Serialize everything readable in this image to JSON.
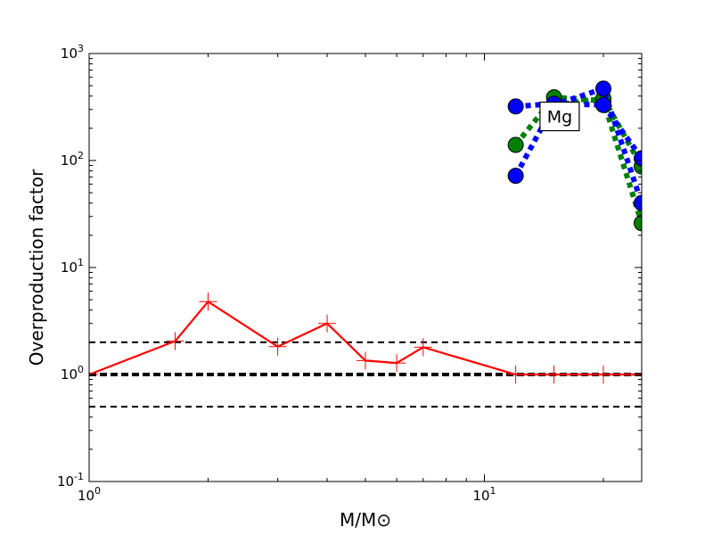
{
  "chart_data": {
    "type": "line",
    "title": "",
    "xlabel": "M/M⊙",
    "ylabel": "Overproduction factor",
    "xscale": "log",
    "yscale": "log",
    "xlim": [
      1,
      25
    ],
    "ylim": [
      0.1,
      1000
    ],
    "grid": false,
    "x_ticks": [
      {
        "value": 1,
        "base": "10",
        "exp": "0"
      },
      {
        "value": 10,
        "base": "10",
        "exp": "1"
      }
    ],
    "y_ticks": [
      {
        "value": 0.1,
        "base": "10",
        "exp": "-1"
      },
      {
        "value": 1,
        "base": "10",
        "exp": "0"
      },
      {
        "value": 10,
        "base": "10",
        "exp": "1"
      },
      {
        "value": 100,
        "base": "10",
        "exp": "2"
      },
      {
        "value": 1000,
        "base": "10",
        "exp": "3"
      }
    ],
    "annotation": {
      "text": "Mg",
      "x": 15.5,
      "y": 190
    },
    "reference_lines": [
      {
        "y": 2,
        "color": "#000000",
        "style": "dashed"
      },
      {
        "y": 1,
        "color": "#000000",
        "style": "dashed-thick"
      },
      {
        "y": 0.5,
        "color": "#000000",
        "style": "dashed"
      }
    ],
    "series": [
      {
        "color": "#ff0000",
        "style": "solid",
        "marker": "plus",
        "x": [
          1,
          1.65,
          2,
          3,
          4,
          5,
          6,
          7,
          12,
          15,
          20,
          25
        ],
        "y": [
          1.0,
          2.05,
          4.8,
          1.82,
          3.0,
          1.35,
          1.28,
          1.8,
          1.0,
          1.0,
          1.0,
          1.0
        ]
      },
      {
        "color": "#008000",
        "style": "dotted",
        "marker": "circle",
        "x": [
          12,
          15,
          20,
          25
        ],
        "y": [
          140,
          390,
          360,
          26
        ]
      },
      {
        "color": "#008000",
        "style": "dotted",
        "marker": "circle",
        "x": [
          15,
          20,
          25
        ],
        "y": [
          330,
          380,
          88
        ]
      },
      {
        "color": "#0000ff",
        "style": "dotted",
        "marker": "circle",
        "x": [
          12,
          15,
          20,
          25
        ],
        "y": [
          72,
          330,
          470,
          40
        ]
      },
      {
        "color": "#0000ff",
        "style": "dotted",
        "marker": "circle",
        "x": [
          12,
          15,
          20,
          25
        ],
        "y": [
          320,
          340,
          330,
          105
        ]
      }
    ]
  }
}
